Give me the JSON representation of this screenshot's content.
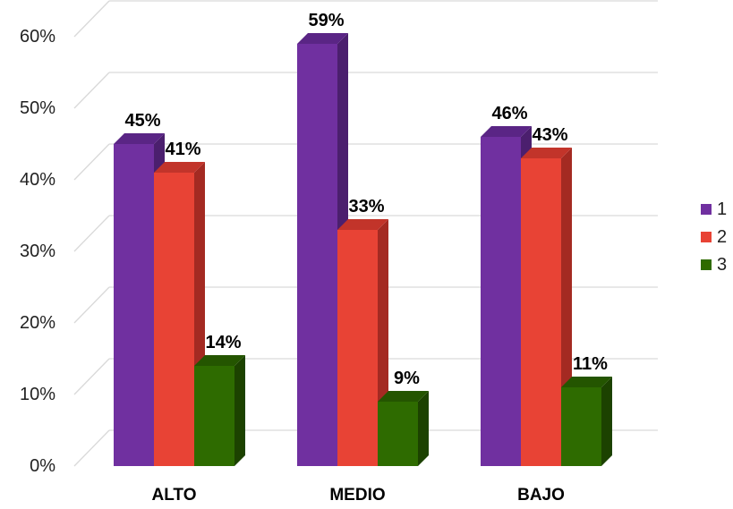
{
  "chart_data": {
    "type": "bar",
    "title": "",
    "xlabel": "",
    "ylabel": "",
    "categories": [
      "ALTO",
      "MEDIO",
      "BAJO"
    ],
    "series": [
      {
        "name": "1",
        "values": [
          45,
          59,
          46
        ],
        "color": "#7030a0",
        "side_color": "#4b1f6e",
        "top_color": "#5a2585"
      },
      {
        "name": "2",
        "values": [
          41,
          33,
          43
        ],
        "color": "#e84335",
        "side_color": "#a42a22",
        "top_color": "#c2342a"
      },
      {
        "name": "3",
        "values": [
          14,
          9,
          11
        ],
        "color": "#2e6b00",
        "side_color": "#1c4200",
        "top_color": "#245500"
      }
    ],
    "data_labels": [
      [
        "45%",
        "59%",
        "46%"
      ],
      [
        "41%",
        "33%",
        "43%"
      ],
      [
        "14%",
        "9%",
        "11%"
      ]
    ],
    "ylim": [
      0,
      60
    ],
    "yticks": [
      0,
      10,
      20,
      30,
      40,
      50,
      60
    ],
    "ytick_labels": [
      "0%",
      "10%",
      "20%",
      "30%",
      "40%",
      "50%",
      "60%"
    ],
    "grid": true,
    "legend_position": "right",
    "style": "3d-clustered-column"
  }
}
